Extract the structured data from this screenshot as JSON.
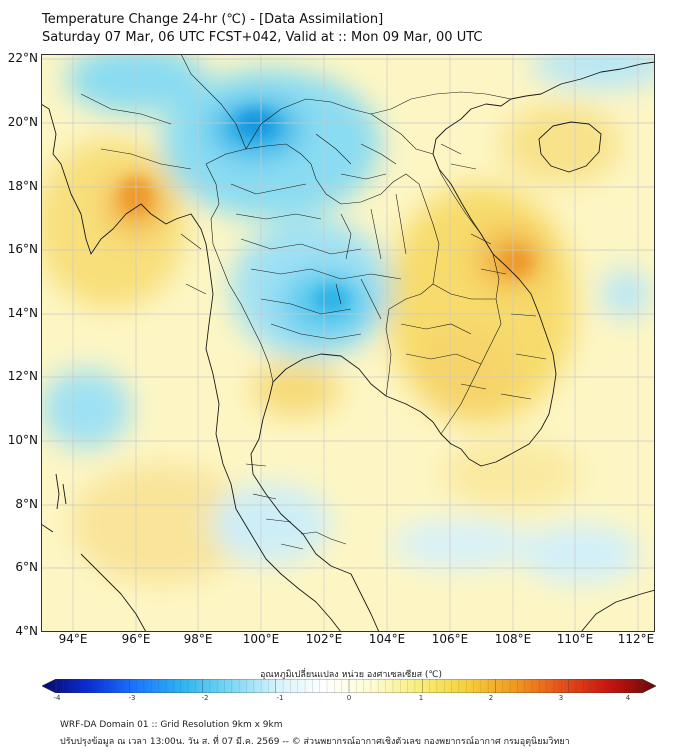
{
  "header": {
    "line1": "Temperature Change 24-hr (℃) - [Data Assimilation]",
    "line2": "Saturday 07 Mar, 06 UTC FCST+042, Valid at :: Mon 09 Mar, 00 UTC"
  },
  "axes": {
    "lat_labels": [
      "22°N",
      "20°N",
      "18°N",
      "16°N",
      "14°N",
      "12°N",
      "10°N",
      "8°N",
      "6°N",
      "4°N"
    ],
    "lon_labels": [
      "94°E",
      "96°E",
      "98°E",
      "100°E",
      "102°E",
      "104°E",
      "106°E",
      "108°E",
      "110°E",
      "112°E"
    ]
  },
  "colorbar": {
    "title": "อุณหภูมิเปลี่ยนแปลง หน่วย องศาเซลเซียส (℃)",
    "ticks": [
      "-4",
      "-3",
      "-2",
      "-1",
      "0",
      "1",
      "2",
      "3",
      "4"
    ],
    "min": -4,
    "max": 4,
    "colors": [
      "#08086b",
      "#0a2ed6",
      "#1b78ff",
      "#2fb6f0",
      "#7bd8f4",
      "#d8f3fb",
      "#ffffff",
      "#fdfbd2",
      "#f8ee78",
      "#f6cf3c",
      "#f09a1e",
      "#e6501a",
      "#c8140f",
      "#6a0808"
    ]
  },
  "footer": {
    "line1": "WRF-DA Domain 01 :: Grid Resolution 9km x 9km",
    "line2": "ปรับปรุงข้อมูล ณ เวลา 13:00น. วัน ส. ที่ 07 มี.ค. 2569 -- © ส่วนพยากรณ์อากาศเชิงตัวเลข กองพยากรณ์อากาศ กรมอุตุนิยมวิทยา"
  },
  "field_palette": {
    "base": "#fdf6c4",
    "warm": "#f8e07a",
    "hot": "#f4b94a",
    "hotter": "#ee9a2c",
    "cool": "#bfe9f6",
    "cold": "#6fd0ef",
    "colder": "#2eb3e8",
    "coldest": "#1496e0",
    "land_line": "#1a1a1a",
    "grid_line": "#c9c9c9"
  }
}
